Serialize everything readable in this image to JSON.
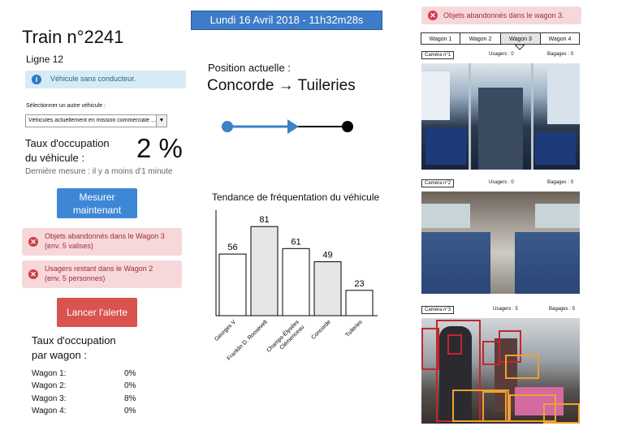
{
  "header": {
    "datetime": "Lundi 16 Avril 2018 - 11h32m28s",
    "top_alert": "Objets abandonnés dans le wagon 3."
  },
  "train": {
    "title": "Train n°2241",
    "line": "Ligne 12",
    "info": "Véhicule sans conducteur.",
    "select_label": "Sélectionner un autre véhicule :",
    "select_value": "Véhicules actuellement en mission commerciale ...",
    "occupancy_label_1": "Taux d'occupation",
    "occupancy_label_2": "du véhicule :",
    "occupancy_value": "2 %",
    "last_measure": "Dernière mesure : il y a moins d'1 minute",
    "measure_button_1": "Mesurer",
    "measure_button_2": "maintenant",
    "alert_button": "Lancer l'alerte"
  },
  "alerts": [
    {
      "line1": "Objets abandonnés dans le Wagon 3",
      "line2": "(env. 5 valises)"
    },
    {
      "line1": "Usagers restant dans le Wagon 2",
      "line2": "(env. 5 personnes)"
    }
  ],
  "wagon_occupancy": {
    "title_1": "Taux d'occupation",
    "title_2": "par wagon :",
    "rows": [
      {
        "label": "Wagon 1:",
        "value": "0%"
      },
      {
        "label": "Wagon 2:",
        "value": "0%"
      },
      {
        "label": "Wagon 3:",
        "value": "8%"
      },
      {
        "label": "Wagon 4:",
        "value": "0%"
      }
    ]
  },
  "position": {
    "label": "Position actuelle :",
    "route": "Concorde → Tuileries"
  },
  "chart_data": {
    "type": "bar",
    "title": "Tendance de fréquentation du véhicule",
    "categories": [
      "Georges V",
      "Franklin D. Roosevelt",
      "Champs-Élysées Clémenceau",
      "Concorde",
      "Tuileries"
    ],
    "values": [
      56,
      81,
      61,
      49,
      23
    ],
    "fills": [
      "#ffffff",
      "#e6e6e6",
      "#ffffff",
      "#e6e6e6",
      "#ffffff"
    ],
    "ylim": [
      0,
      90
    ]
  },
  "wagon_tabs": [
    "Wagon 1",
    "Wagon 2",
    "Wagon 3",
    "Wagon 4"
  ],
  "active_tab": "Wagon 3",
  "cameras": [
    {
      "label": "Caméra n°1",
      "users": "Usagers : 0",
      "bags": "Bagages : 0"
    },
    {
      "label": "Caméra n°2",
      "users": "Usagers : 0",
      "bags": "Bagages : 0"
    },
    {
      "label": "Caméra n°3",
      "users": "Usagers : 5",
      "bags": "Bagages : 5"
    }
  ],
  "colors": {
    "header_box": "#3d7cc9",
    "alert_bg": "#f6d8db",
    "alert_text": "#a22b34",
    "info_bg": "#d6ecf5",
    "button_blue": "#3e87d6",
    "button_red": "#d9534f",
    "route_blue": "#3b82c6",
    "detect_person": "#c0272d",
    "detect_bag": "#f0a030"
  }
}
